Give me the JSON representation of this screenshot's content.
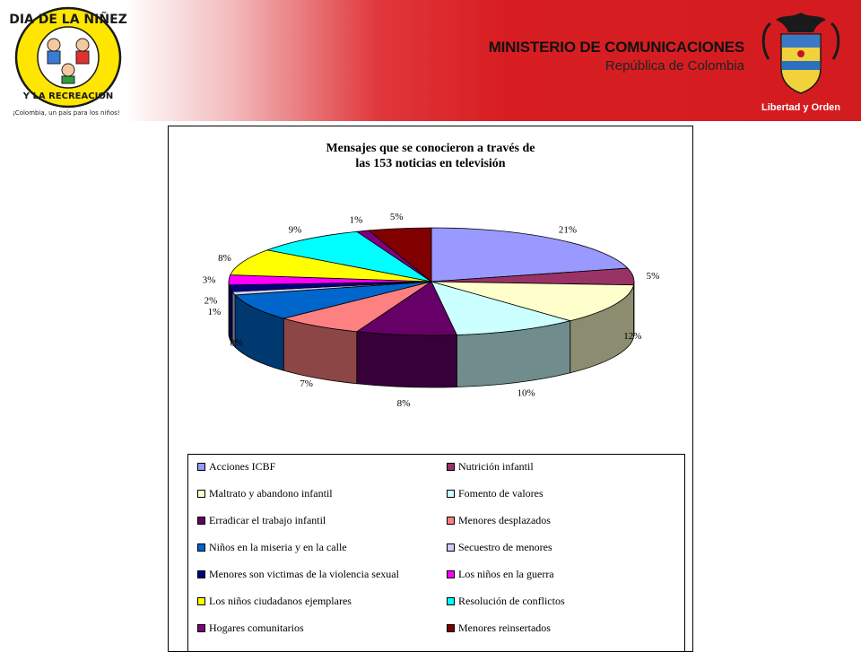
{
  "header": {
    "ministry": "MINISTERIO DE COMUNICACIONES",
    "country": "República de Colombia",
    "left_logo": {
      "text_top": "DIA DE LA NIÑEZ",
      "text_bottom": "Y LA RECREACION",
      "tagline": "¡Colombia, un país para los niños!"
    },
    "right_logo": {
      "motto": "Libertad y Orden"
    }
  },
  "chart_data": {
    "type": "pie",
    "title_line1": "Mensajes que se conocieron a través de",
    "title_line2": "las 153 noticias en televisión",
    "total_news": 153,
    "legend_position": "bottom",
    "categories": [
      {
        "label": "Acciones ICBF",
        "value": 21,
        "pct_label": "21%",
        "color": "#9999ff"
      },
      {
        "label": "Nutrición infantil",
        "value": 5,
        "pct_label": "5%",
        "color": "#993366"
      },
      {
        "label": "Maltrato y abandono infantil",
        "value": 12,
        "pct_label": "12%",
        "color": "#ffffcc"
      },
      {
        "label": "Fomento de valores",
        "value": 10,
        "pct_label": "10%",
        "color": "#ccffff"
      },
      {
        "label": "Erradicar el trabajo infantil",
        "value": 8,
        "pct_label": "8%",
        "color": "#660066"
      },
      {
        "label": "Menores desplazados",
        "value": 7,
        "pct_label": "7%",
        "color": "#ff8080"
      },
      {
        "label": "Niños en la miseria y en la calle",
        "value": 8,
        "pct_label": "8%",
        "color": "#0066cc"
      },
      {
        "label": "Secuestro de menores",
        "value": 1,
        "pct_label": "1%",
        "color": "#ccccff"
      },
      {
        "label": "Menores son victimas de la violencia sexual",
        "value": 2,
        "pct_label": "2%",
        "color": "#000080"
      },
      {
        "label": "Los niños en la guerra",
        "value": 3,
        "pct_label": "3%",
        "color": "#ff00ff"
      },
      {
        "label": "Los niños ciudadanos ejemplares",
        "value": 8,
        "pct_label": "8%",
        "color": "#ffff00"
      },
      {
        "label": "Resolución de conflictos",
        "value": 9,
        "pct_label": "9%",
        "color": "#00ffff"
      },
      {
        "label": "Hogares comunitarios",
        "value": 1,
        "pct_label": "1%",
        "color": "#800080"
      },
      {
        "label": "Menores reinsertados",
        "value": 5,
        "pct_label": "5%",
        "color": "#800000"
      }
    ]
  }
}
